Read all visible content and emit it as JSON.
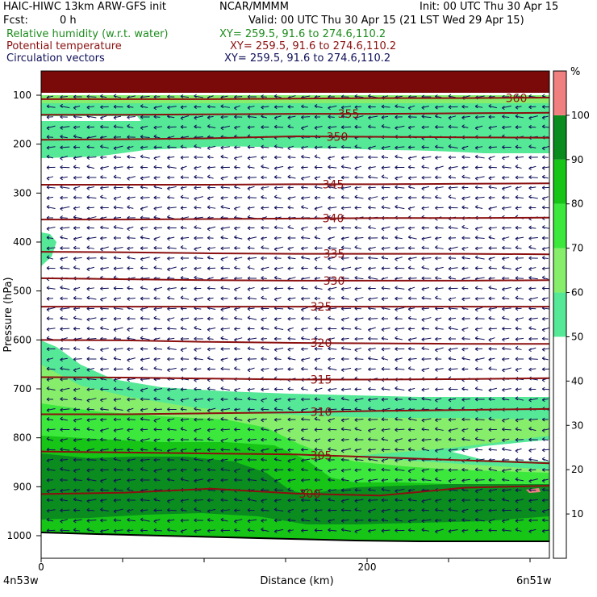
{
  "header": {
    "model_title": "HAIC-HIWC 13km ARW-GFS init",
    "org": "NCAR/MMMM",
    "init": "Init: 00 UTC Thu 30 Apr 15",
    "fcst_label": "Fcst:",
    "fcst_value": "0 h",
    "valid": "Valid: 00 UTC Thu 30 Apr 15 (21 LST Wed 29 Apr 15)",
    "fields": [
      {
        "name": "Relative humidity (w.r.t. water)",
        "xy": "XY= 259.5, 91.6 to 274.6,110.2",
        "color": "#1e8c1e"
      },
      {
        "name": "Potential temperature",
        "xy": "XY= 259.5, 91.6 to 274.6,110.2",
        "color": "#8b1010"
      },
      {
        "name": "Circulation vectors",
        "xy": "XY= 259.5, 91.6 to 274.6,110.2",
        "color": "#10105a"
      }
    ]
  },
  "axes": {
    "ylabel": "Pressure (hPa)",
    "xlabel": "Distance (km)",
    "left_end": "4n53w",
    "right_end": "6n51w",
    "colorbar_unit": "%"
  },
  "chart_data": {
    "type": "heatmap",
    "title": "HAIC-HIWC 13km ARW-GFS init",
    "xlabel": "Distance (km)",
    "ylabel": "Pressure (hPa)",
    "xlim": [
      0,
      311
    ],
    "ylim": [
      1050,
      50
    ],
    "x_ticks": [
      0,
      200
    ],
    "y_ticks": [
      100,
      200,
      300,
      400,
      500,
      600,
      700,
      800,
      900,
      1000
    ],
    "y_scale": "linear",
    "fill_field": "Relative humidity (w.r.t. water)",
    "colorbar": {
      "unit": "%",
      "ticks": [
        10,
        20,
        30,
        40,
        50,
        60,
        70,
        80,
        90,
        100
      ],
      "levels": [
        {
          "from": 0,
          "to": 50,
          "color": "#ffffff"
        },
        {
          "from": 50,
          "to": 60,
          "color": "#55e896"
        },
        {
          "from": 60,
          "to": 70,
          "color": "#86ee6a"
        },
        {
          "from": 70,
          "to": 80,
          "color": "#3de83d"
        },
        {
          "from": 80,
          "to": 90,
          "color": "#16c516"
        },
        {
          "from": 90,
          "to": 100,
          "color": "#0a8c1e"
        },
        {
          "from": 100,
          "to": 110,
          "color": "#f08080"
        }
      ]
    },
    "contour_field": "Potential temperature",
    "contour_color": "#8b1010",
    "isentropes": [
      {
        "label": "360",
        "p": [
          108,
          108,
          108,
          107,
          106,
          106,
          105
        ]
      },
      {
        "label": "355",
        "p": [
          140,
          140,
          139,
          138,
          138,
          137,
          136
        ]
      },
      {
        "label": "350",
        "p": [
          191,
          190,
          188,
          184,
          185,
          186,
          187
        ]
      },
      {
        "label": "345",
        "p": [
          283,
          283,
          283,
          282,
          282,
          281,
          280
        ]
      },
      {
        "label": "340",
        "p": [
          354,
          354,
          353,
          352,
          351,
          351,
          350
        ]
      },
      {
        "label": "335",
        "p": [
          420,
          421,
          423,
          424,
          424,
          424,
          425
        ]
      },
      {
        "label": "330",
        "p": [
          474,
          476,
          478,
          479,
          479,
          479,
          478
        ]
      },
      {
        "label": "325",
        "p": [
          532,
          532,
          532,
          532,
          532,
          532,
          532
        ]
      },
      {
        "label": "320",
        "p": [
          600,
          601,
          604,
          606,
          607,
          608,
          608
        ]
      },
      {
        "label": "315",
        "p": [
          676,
          677,
          679,
          681,
          681,
          680,
          678
        ]
      },
      {
        "label": "310",
        "p": [
          752,
          752,
          750,
          748,
          745,
          743,
          741
        ]
      },
      {
        "label": "305",
        "p": [
          828,
          830,
          832,
          834,
          840,
          846,
          852
        ]
      },
      {
        "label": "300",
        "p": [
          915,
          912,
          904,
          914,
          918,
          902,
          898
        ]
      }
    ],
    "vector_field": "Circulation vectors",
    "vector_direction": "easterly (toward decreasing distance) at most levels",
    "contour_labels": [
      "360",
      "355",
      "350",
      "345",
      "340",
      "335",
      "330",
      "325",
      "320",
      "315",
      "310",
      "305",
      "300"
    ]
  }
}
